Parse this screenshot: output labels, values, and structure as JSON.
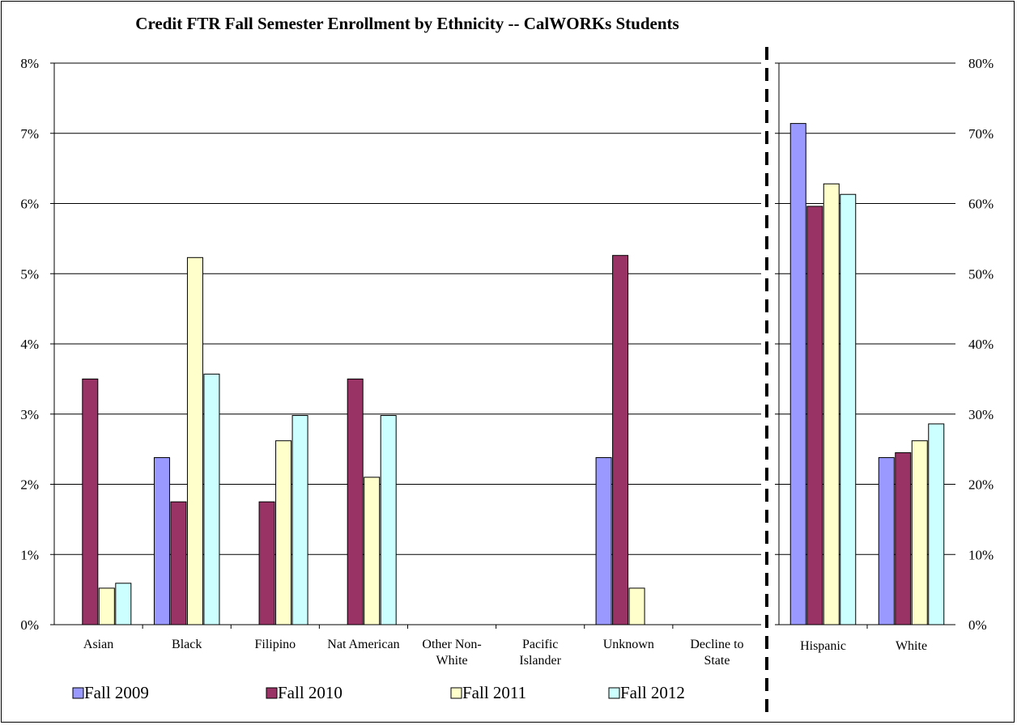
{
  "chart_data": [
    {
      "type": "bar",
      "title": "Credit FTR Fall Semester Enrollment by Ethnicity -- CalWORKs Students",
      "categories": [
        [
          "Asian"
        ],
        [
          "Black"
        ],
        [
          "Filipino"
        ],
        [
          "Nat American"
        ],
        [
          "Other Non-",
          "White"
        ],
        [
          "Pacific",
          "Islander"
        ],
        [
          "Unknown"
        ],
        [
          "Decline to",
          "State"
        ]
      ],
      "ylim": [
        0,
        0.08
      ],
      "yticks": [
        "0%",
        "1%",
        "2%",
        "3%",
        "4%",
        "5%",
        "6%",
        "7%",
        "8%"
      ],
      "series": [
        {
          "name": "Fall 2009",
          "values": [
            0,
            0.0238,
            0,
            0,
            0,
            0,
            0.0238,
            0
          ]
        },
        {
          "name": "Fall 2010",
          "values": [
            0.035,
            0.0175,
            0.0175,
            0.035,
            0,
            0,
            0.0526,
            0
          ]
        },
        {
          "name": "Fall 2011",
          "values": [
            0.0052,
            0.0523,
            0.0262,
            0.021,
            0,
            0,
            0.0052,
            0
          ]
        },
        {
          "name": "Fall 2012",
          "values": [
            0.0059,
            0.0357,
            0.0298,
            0.0298,
            0,
            0,
            0,
            0
          ]
        }
      ]
    },
    {
      "type": "bar",
      "categories": [
        [
          "Hispanic"
        ],
        [
          "White"
        ]
      ],
      "ylim": [
        0,
        0.8
      ],
      "yticks": [
        "0%",
        "10%",
        "20%",
        "30%",
        "40%",
        "50%",
        "60%",
        "70%",
        "80%"
      ],
      "series": [
        {
          "name": "Fall 2009",
          "values": [
            0.714,
            0.238
          ]
        },
        {
          "name": "Fall 2010",
          "values": [
            0.596,
            0.245
          ]
        },
        {
          "name": "Fall 2011",
          "values": [
            0.628,
            0.262
          ]
        },
        {
          "name": "Fall 2012",
          "values": [
            0.613,
            0.286
          ]
        }
      ]
    }
  ],
  "legend": [
    {
      "label": "Fall 2009"
    },
    {
      "label": "Fall 2010"
    },
    {
      "label": "Fall 2011"
    },
    {
      "label": "Fall 2012"
    }
  ],
  "colors": {
    "series": [
      "#9999FF",
      "#993366",
      "#FFFFCC",
      "#CCFFFF"
    ],
    "gridline": "#000000",
    "background": "#FFFFFF"
  }
}
